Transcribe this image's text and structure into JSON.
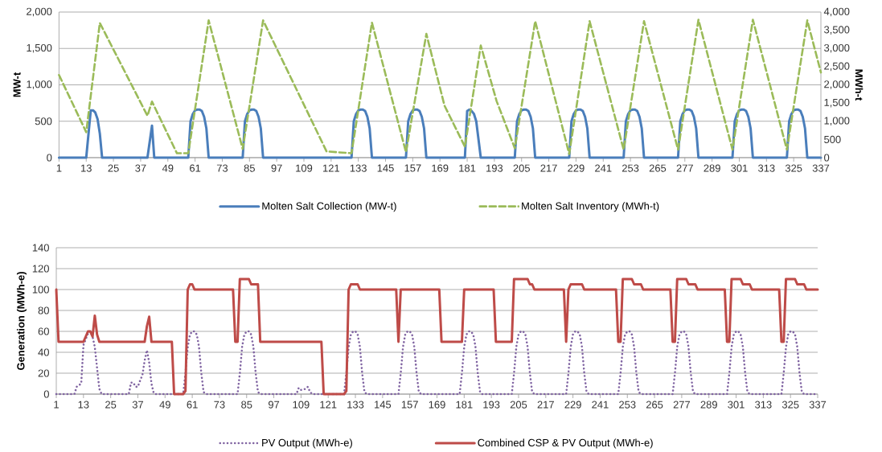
{
  "chart_data": [
    {
      "type": "line",
      "xlim": [
        1,
        337
      ],
      "xticks": [
        1,
        13,
        25,
        37,
        49,
        61,
        73,
        85,
        97,
        109,
        121,
        133,
        145,
        157,
        169,
        181,
        193,
        205,
        217,
        229,
        241,
        253,
        265,
        277,
        289,
        301,
        313,
        325,
        337
      ],
      "ylim": [
        0,
        2000
      ],
      "yticks": [
        0,
        500,
        {
          "value": 1000,
          "label": "1,000"
        },
        {
          "value": 1500,
          "label": "1,500"
        },
        {
          "value": 2000,
          "label": "2,000"
        }
      ],
      "y2lim": [
        0,
        4000
      ],
      "y2ticks": [
        0,
        500,
        {
          "value": 1000,
          "label": "1,000"
        },
        {
          "value": 1500,
          "label": "1,500"
        },
        {
          "value": 2000,
          "label": "2,000"
        },
        {
          "value": 2500,
          "label": "2,500"
        },
        {
          "value": 3000,
          "label": "3,000"
        },
        {
          "value": 3500,
          "label": "3,500"
        },
        {
          "value": 4000,
          "label": "4,000"
        }
      ],
      "ylabel": "MW-t",
      "y2label": "MWh-t",
      "grid": "y",
      "legend": "bottom",
      "marker": "none",
      "series": [
        {
          "name": "Molten Salt Collection (MW-t)",
          "color": "#4a7ebb",
          "line_style": "solid",
          "x": [
            1,
            13,
            15,
            16,
            17,
            18,
            19,
            20,
            40,
            42,
            43,
            58,
            59,
            60,
            61,
            62,
            63,
            64,
            65,
            66,
            67,
            82,
            83,
            84,
            85,
            86,
            87,
            88,
            89,
            90,
            91,
            130,
            131,
            132,
            133,
            134,
            135,
            136,
            137,
            138,
            139,
            154,
            155,
            156,
            157,
            158,
            159,
            160,
            161,
            162,
            163,
            180,
            181,
            182,
            183,
            184,
            185,
            186,
            187,
            202,
            203,
            204,
            205,
            206,
            207,
            208,
            209,
            210,
            211,
            226,
            227,
            228,
            229,
            230,
            231,
            232,
            233,
            234,
            235,
            250,
            251,
            252,
            253,
            254,
            255,
            256,
            257,
            258,
            259,
            274,
            275,
            276,
            277,
            278,
            279,
            280,
            281,
            282,
            283,
            298,
            299,
            300,
            301,
            302,
            303,
            304,
            305,
            306,
            307,
            322,
            323,
            324,
            325,
            326,
            327,
            328,
            329,
            330,
            331,
            337
          ],
          "values": [
            0,
            0,
            650,
            650,
            620,
            530,
            330,
            0,
            0,
            440,
            0,
            0,
            500,
            600,
            650,
            660,
            660,
            640,
            560,
            400,
            0,
            0,
            500,
            600,
            650,
            660,
            660,
            640,
            560,
            400,
            0,
            0,
            500,
            600,
            650,
            660,
            660,
            640,
            560,
            400,
            0,
            0,
            500,
            600,
            650,
            660,
            660,
            640,
            560,
            400,
            0,
            0,
            640,
            660,
            640,
            600,
            500,
            250,
            0,
            0,
            500,
            600,
            650,
            660,
            660,
            640,
            560,
            400,
            0,
            0,
            500,
            600,
            650,
            660,
            660,
            640,
            560,
            400,
            0,
            0,
            500,
            600,
            650,
            660,
            660,
            640,
            560,
            400,
            0,
            0,
            500,
            600,
            650,
            660,
            660,
            640,
            560,
            400,
            0,
            0,
            500,
            600,
            650,
            660,
            660,
            640,
            560,
            400,
            0,
            0,
            500,
            600,
            650,
            660,
            660,
            640,
            560,
            400,
            0,
            0
          ]
        },
        {
          "name": "Molten Salt Inventory (MWh-t)",
          "color": "#9bbb59",
          "line_style": "dashed",
          "axis": "y2",
          "x": [
            1,
            13,
            19,
            40,
            42,
            53,
            58,
            67,
            82,
            91,
            119,
            130,
            139,
            154,
            163,
            171,
            180,
            187,
            194,
            202,
            211,
            226,
            235,
            250,
            259,
            274,
            283,
            298,
            307,
            322,
            331,
            337
          ],
          "values": [
            2270,
            700,
            3700,
            1150,
            1540,
            120,
            120,
            3770,
            240,
            3770,
            170,
            120,
            3710,
            150,
            3400,
            1430,
            300,
            3080,
            1550,
            260,
            3750,
            100,
            3750,
            220,
            3750,
            220,
            3790,
            220,
            3790,
            220,
            3770,
            2340
          ]
        }
      ]
    },
    {
      "type": "line",
      "xlim": [
        1,
        337
      ],
      "xticks": [
        1,
        13,
        25,
        37,
        49,
        61,
        73,
        85,
        97,
        109,
        121,
        133,
        145,
        157,
        169,
        181,
        193,
        205,
        217,
        229,
        241,
        253,
        265,
        277,
        289,
        301,
        313,
        325,
        337
      ],
      "ylim": [
        0,
        140
      ],
      "yticks": [
        0,
        20,
        40,
        60,
        80,
        100,
        120,
        140
      ],
      "ylabel": "Generation (MWh-e)",
      "grid": "y",
      "legend": "bottom",
      "marker": "none",
      "series": [
        {
          "name": "PV Output (MWh-e)",
          "color": "#8064a2",
          "line_style": "dotted",
          "x": [
            1,
            9,
            10,
            12,
            13,
            15,
            16,
            17,
            18,
            19,
            20,
            21,
            33,
            34,
            35,
            36,
            37,
            38,
            39,
            40,
            41,
            42,
            43,
            44,
            45,
            57,
            58,
            59,
            60,
            61,
            62,
            63,
            64,
            65,
            66,
            67,
            81,
            82,
            83,
            84,
            85,
            86,
            87,
            88,
            89,
            90,
            91,
            107,
            108,
            109,
            111,
            112,
            113,
            114,
            128,
            129,
            130,
            131,
            132,
            133,
            134,
            135,
            136,
            137,
            138,
            152,
            153,
            154,
            155,
            156,
            157,
            158,
            159,
            160,
            161,
            162,
            179,
            180,
            181,
            182,
            183,
            184,
            185,
            186,
            187,
            188,
            189,
            202,
            203,
            204,
            205,
            206,
            207,
            208,
            209,
            210,
            211,
            212,
            226,
            227,
            228,
            229,
            230,
            231,
            232,
            233,
            234,
            235,
            236,
            249,
            250,
            251,
            252,
            253,
            254,
            255,
            256,
            257,
            258,
            259,
            273,
            274,
            275,
            276,
            277,
            278,
            279,
            280,
            281,
            282,
            283,
            297,
            298,
            299,
            300,
            301,
            302,
            303,
            304,
            305,
            306,
            307,
            321,
            322,
            323,
            324,
            325,
            326,
            327,
            328,
            329,
            330,
            331,
            337
          ],
          "values": [
            0,
            0,
            7,
            10,
            47,
            58,
            60,
            55,
            45,
            25,
            5,
            0,
            0,
            11,
            11,
            7,
            7,
            13,
            18,
            32,
            42,
            30,
            10,
            1,
            0,
            0,
            20,
            45,
            57,
            60,
            60,
            57,
            45,
            20,
            2,
            0,
            0,
            20,
            45,
            57,
            60,
            60,
            57,
            45,
            20,
            2,
            0,
            0,
            6,
            4,
            5,
            7,
            2,
            0,
            0,
            20,
            45,
            57,
            60,
            60,
            57,
            45,
            20,
            2,
            0,
            0,
            20,
            45,
            57,
            60,
            60,
            57,
            45,
            20,
            2,
            0,
            0,
            20,
            45,
            57,
            60,
            60,
            57,
            45,
            20,
            2,
            0,
            0,
            20,
            45,
            57,
            60,
            60,
            57,
            45,
            20,
            2,
            0,
            0,
            20,
            45,
            57,
            60,
            60,
            57,
            45,
            20,
            2,
            0,
            0,
            20,
            45,
            57,
            60,
            60,
            57,
            45,
            20,
            2,
            0,
            0,
            20,
            45,
            57,
            60,
            60,
            57,
            45,
            20,
            2,
            0,
            0,
            20,
            45,
            57,
            60,
            60,
            57,
            45,
            20,
            2,
            0,
            0,
            20,
            45,
            57,
            60,
            60,
            57,
            45,
            20,
            2,
            0,
            0
          ]
        },
        {
          "name": "Combined CSP & PV Output (MWh-e)",
          "color": "#be4b48",
          "line_style": "solid",
          "x": [
            1,
            2,
            13,
            15,
            16,
            17,
            18,
            19,
            20,
            40,
            41,
            42,
            43,
            52,
            53,
            57,
            58,
            59,
            60,
            61,
            62,
            79,
            80,
            81,
            82,
            86,
            87,
            90,
            91,
            118,
            119,
            128,
            129,
            130,
            131,
            134,
            135,
            151,
            152,
            153,
            170,
            171,
            180,
            181,
            194,
            195,
            202,
            203,
            209,
            210,
            211,
            212,
            225,
            226,
            227,
            228,
            233,
            234,
            248,
            249,
            250,
            251,
            255,
            256,
            259,
            260,
            272,
            273,
            274,
            275,
            279,
            280,
            283,
            284,
            296,
            297,
            298,
            299,
            303,
            304,
            307,
            308,
            320,
            321,
            322,
            323,
            327,
            328,
            331,
            332,
            337
          ],
          "values": [
            100,
            50,
            50,
            60,
            60,
            55,
            75,
            57,
            50,
            50,
            65,
            74,
            50,
            50,
            0,
            0,
            3,
            100,
            105,
            105,
            100,
            100,
            50,
            50,
            110,
            110,
            105,
            105,
            50,
            50,
            0,
            0,
            3,
            100,
            105,
            105,
            100,
            100,
            50,
            100,
            100,
            50,
            50,
            100,
            100,
            50,
            50,
            110,
            110,
            105,
            105,
            100,
            100,
            50,
            100,
            105,
            105,
            100,
            100,
            50,
            50,
            110,
            110,
            105,
            105,
            100,
            100,
            50,
            50,
            110,
            110,
            105,
            105,
            100,
            100,
            50,
            50,
            110,
            110,
            105,
            105,
            100,
            100,
            50,
            50,
            110,
            110,
            105,
            105,
            100,
            100
          ]
        }
      ]
    }
  ]
}
